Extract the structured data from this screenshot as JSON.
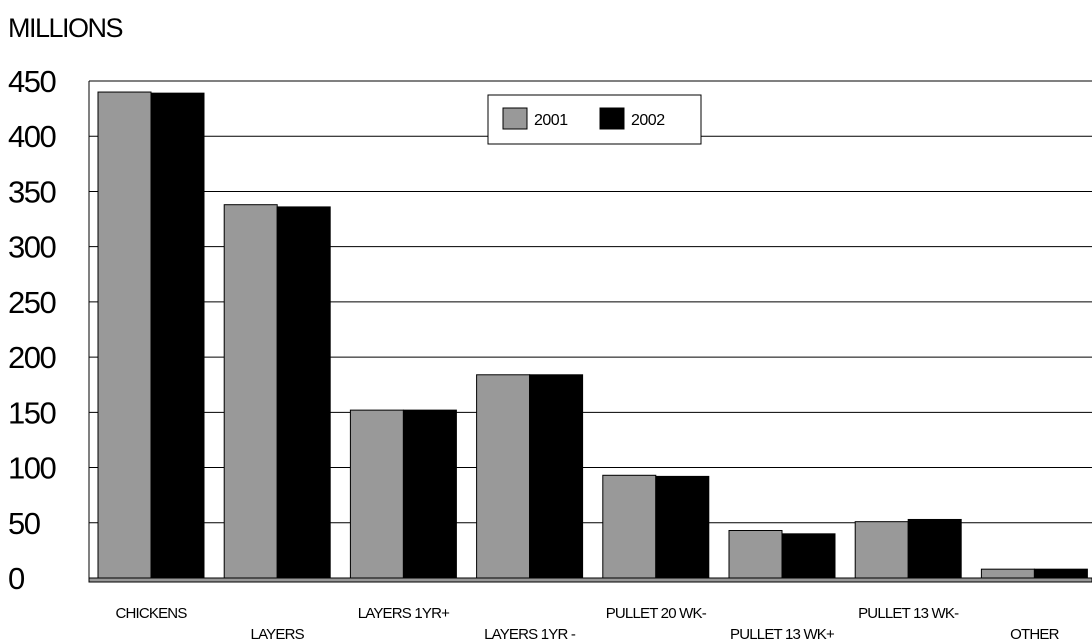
{
  "chart_data": {
    "type": "bar",
    "title": "",
    "ylabel": "MILLIONS",
    "xlabel": "",
    "categories": [
      "CHICKENS",
      "LAYERS",
      "LAYERS 1YR+",
      "LAYERS 1YR -",
      "PULLET 20 WK-",
      "PULLET 13 WK+",
      "PULLET 13 WK-",
      "OTHER"
    ],
    "series": [
      {
        "name": "2001",
        "color": "#999999",
        "values": [
          440,
          338,
          152,
          184,
          93,
          43,
          51,
          8
        ]
      },
      {
        "name": "2002",
        "color": "#000000",
        "values": [
          439,
          336,
          152,
          184,
          92,
          40,
          53,
          8
        ]
      }
    ],
    "ylim": [
      0,
      450
    ],
    "yticks": [
      "0",
      "50",
      "100",
      "150",
      "200",
      "250",
      "300",
      "350",
      "400",
      "450"
    ],
    "grid": true,
    "legend": "top-center"
  }
}
